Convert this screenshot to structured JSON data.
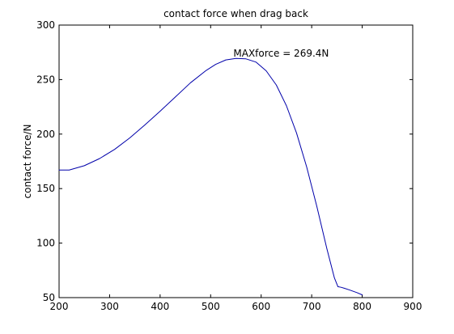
{
  "chart_data": {
    "type": "line",
    "title": "contact force when drag back",
    "xlabel": "",
    "ylabel": "contact force/N",
    "xlim": [
      200,
      900
    ],
    "ylim": [
      50,
      300
    ],
    "xticks": [
      200,
      300,
      400,
      500,
      600,
      700,
      800,
      900
    ],
    "yticks": [
      50,
      100,
      150,
      200,
      250,
      300
    ],
    "xtick_labels": [
      "200",
      "300",
      "400",
      "500",
      "600",
      "700",
      "800",
      "900"
    ],
    "ytick_labels": [
      "50",
      "100",
      "150",
      "200",
      "250",
      "300"
    ],
    "grid": false,
    "legend": "none",
    "series": [
      {
        "color": "#0000aa",
        "x": [
          200,
          220,
          250,
          280,
          310,
          340,
          370,
          400,
          430,
          460,
          490,
          510,
          530,
          550,
          570,
          590,
          610,
          630,
          650,
          670,
          690,
          710,
          730,
          745,
          752,
          758,
          765,
          775,
          790,
          800
        ],
        "y": [
          167,
          167,
          171,
          177.5,
          186,
          196.5,
          208.5,
          221,
          234,
          247,
          258,
          264,
          268,
          269.4,
          269,
          266,
          258,
          245,
          226,
          201,
          170,
          134,
          95,
          68,
          60,
          59.5,
          58.5,
          57,
          54.5,
          52.5
        ]
      }
    ],
    "annotations": [
      {
        "text": "MAXforce = 269.4N",
        "x": 545,
        "y": 269.4
      }
    ]
  }
}
